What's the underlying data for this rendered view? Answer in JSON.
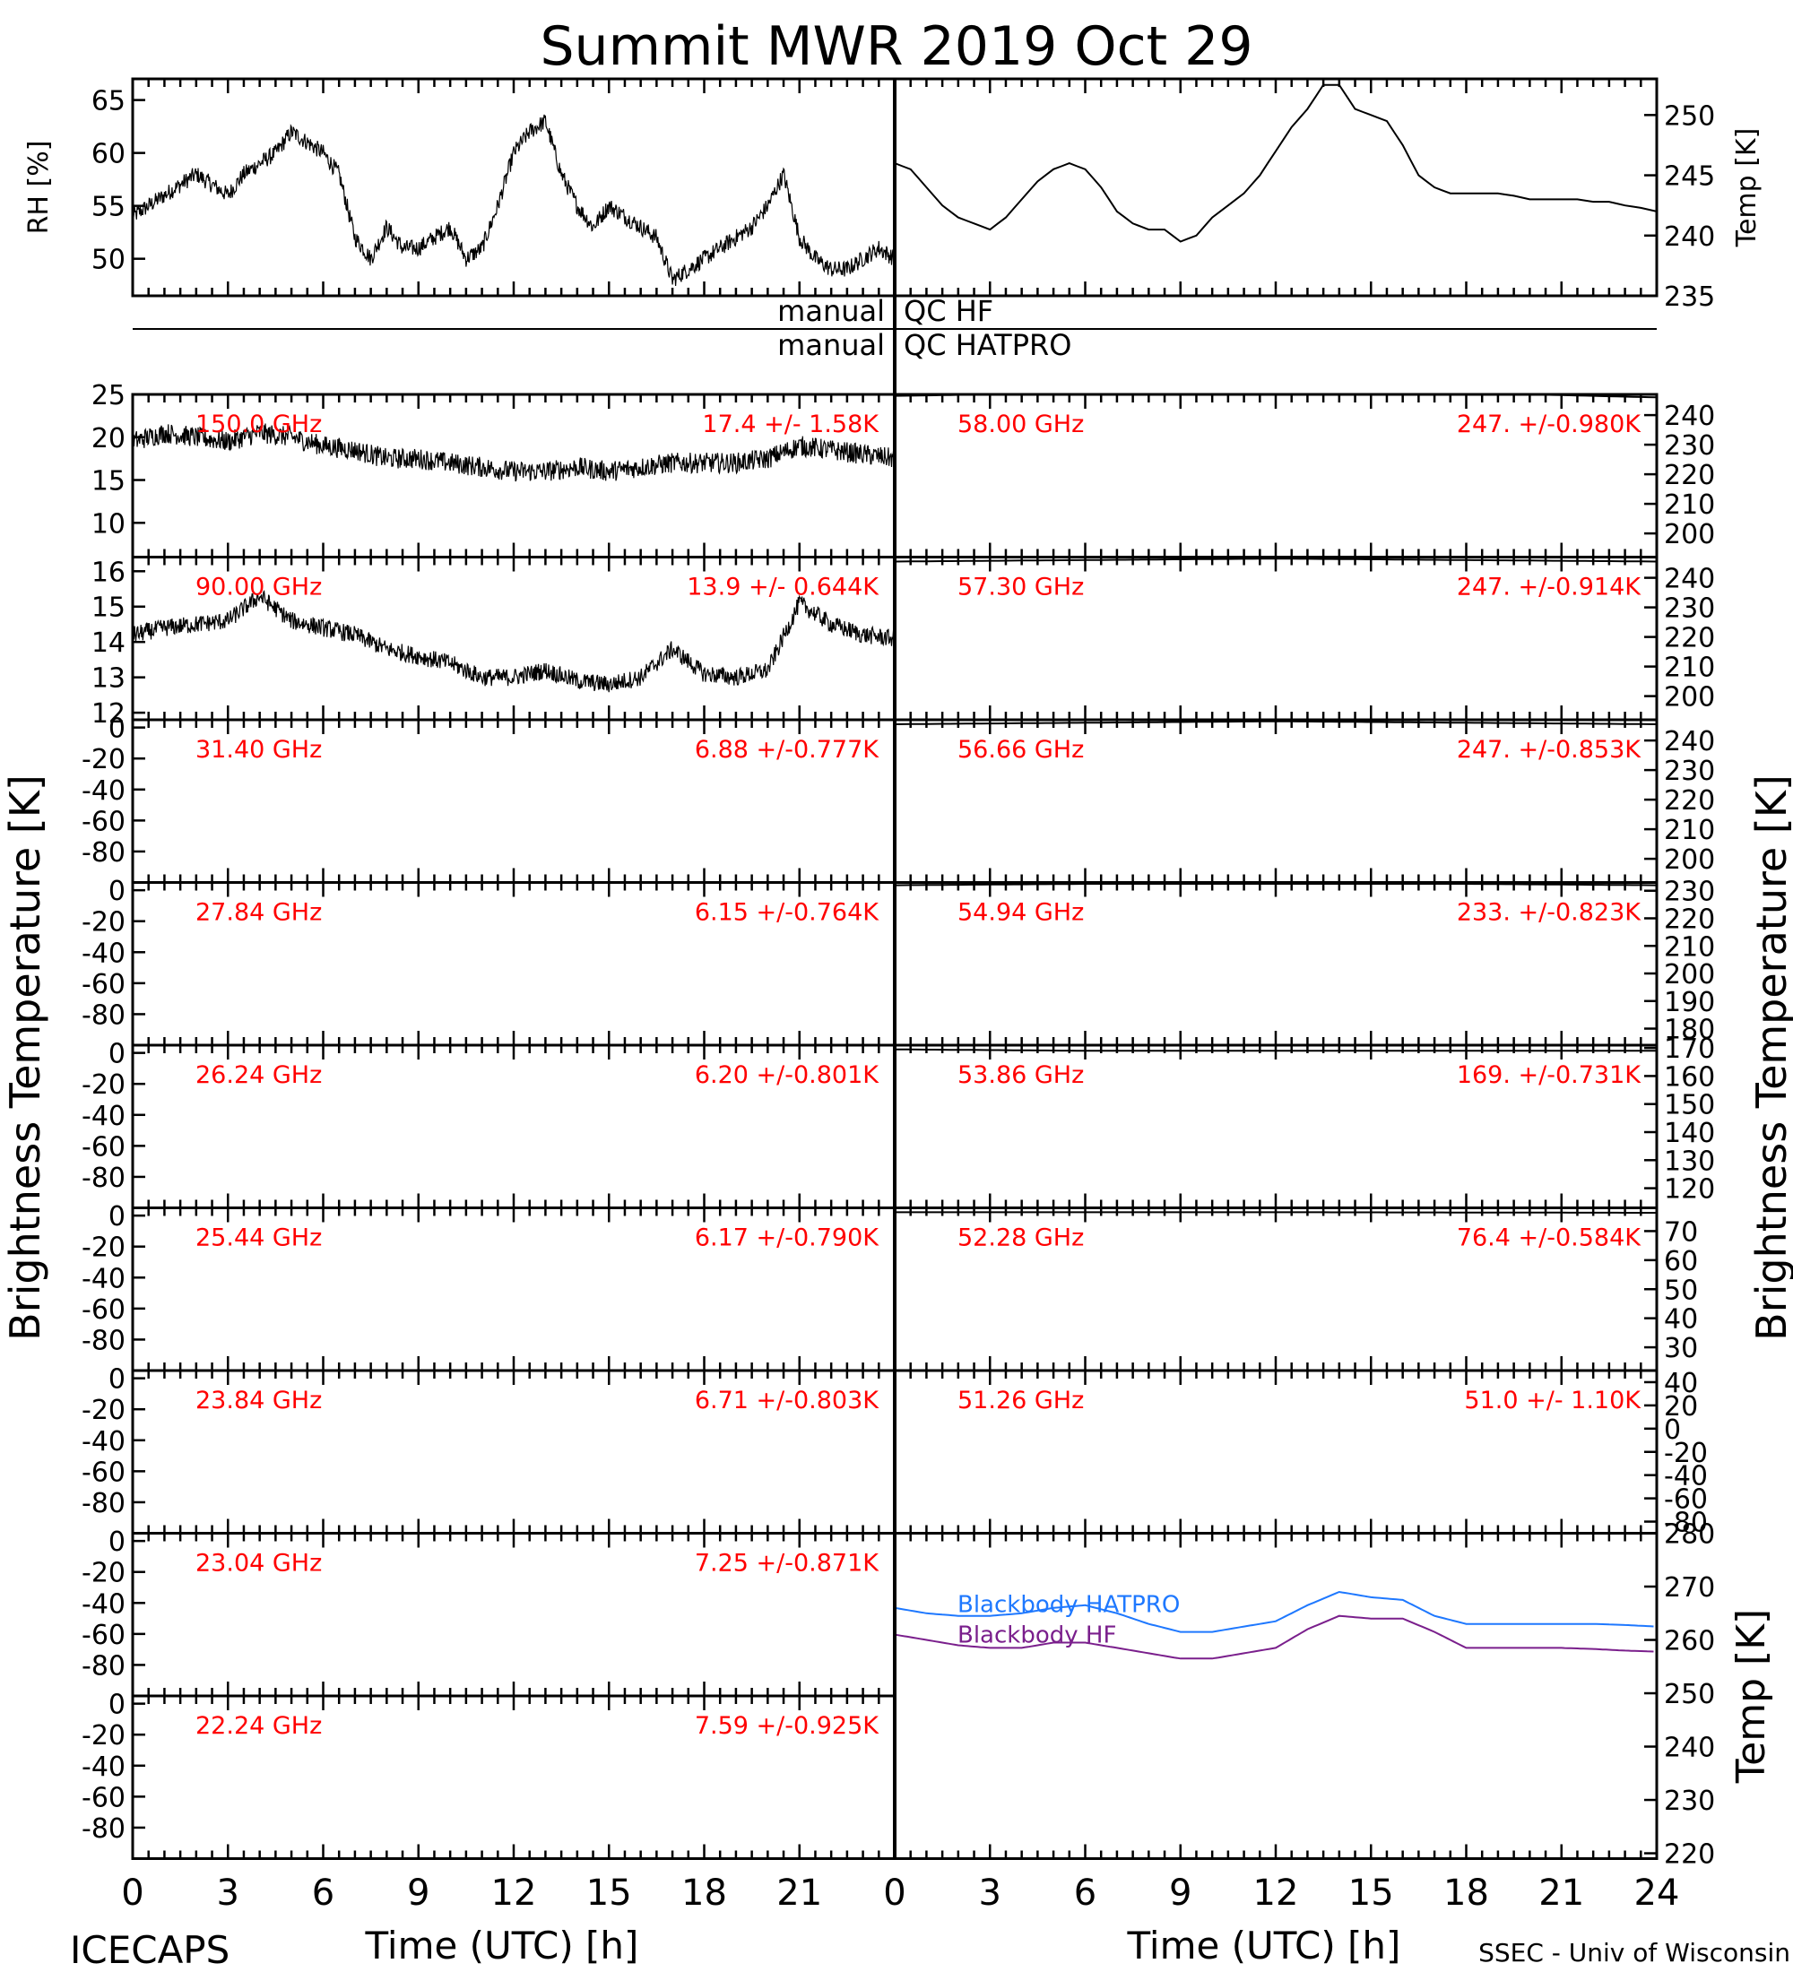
{
  "page": {
    "title": "Summit MWR 2019 Oct 29",
    "footer_left": "ICECAPS",
    "footer_right": "SSEC - Univ of Wisconsin",
    "qc_rows": [
      {
        "left": "manual",
        "right": "QC HF"
      },
      {
        "left": "manual",
        "right": "QC HATPRO"
      }
    ],
    "colors": {
      "axes": "#000000",
      "annotation": "#ff0000",
      "hatpro": "#1e78ff",
      "hf": "#7a1f8c"
    }
  },
  "chart_data": [
    {
      "type": "scatter",
      "ylabel": "RH [%]",
      "xlim": [
        0,
        24
      ],
      "ylim": [
        46.5,
        67
      ],
      "yticks": [
        "50",
        "55",
        "60",
        "65"
      ],
      "x": [
        0,
        0.5,
        1,
        1.5,
        2,
        2.5,
        3,
        3.5,
        4,
        4.5,
        5,
        5.5,
        6,
        6.5,
        7,
        7.5,
        8,
        8.5,
        9,
        9.5,
        10,
        10.5,
        11,
        11.5,
        12,
        12.5,
        13,
        13.5,
        14,
        14.5,
        15,
        15.5,
        16,
        16.5,
        17,
        17.5,
        18,
        18.5,
        19,
        19.5,
        20,
        20.5,
        21,
        21.5,
        22,
        22.5,
        23,
        23.5,
        24
      ],
      "y": [
        54,
        55,
        56,
        57,
        58,
        57,
        56,
        58,
        59,
        60,
        62,
        61,
        60,
        58,
        52,
        50,
        53,
        51,
        51,
        52,
        53,
        50,
        51,
        55,
        60,
        62,
        63,
        58,
        55,
        53,
        55,
        54,
        53,
        52,
        48,
        49,
        50,
        51,
        52,
        53,
        55,
        58,
        52,
        50,
        49,
        49,
        50,
        51,
        50
      ]
    },
    {
      "type": "line",
      "ylabel": "Temp [K]",
      "xlim": [
        0,
        24
      ],
      "ylim": [
        235,
        253
      ],
      "yticks": [
        "235",
        "240",
        "245",
        "250"
      ],
      "x": [
        0,
        0.5,
        1,
        1.5,
        2,
        2.5,
        3,
        3.5,
        4,
        4.5,
        5,
        5.5,
        6,
        6.5,
        7,
        7.5,
        8,
        8.5,
        9,
        9.5,
        10,
        10.5,
        11,
        11.5,
        12,
        12.5,
        13,
        13.5,
        14,
        14.5,
        15,
        15.5,
        16,
        16.5,
        17,
        17.5,
        18,
        18.5,
        19,
        19.5,
        20,
        20.5,
        21,
        21.5,
        22,
        22.5,
        23,
        23.5,
        24
      ],
      "y": [
        246,
        245.5,
        244,
        242.5,
        241.5,
        241,
        240.5,
        241.5,
        243,
        244.5,
        245.5,
        246,
        245.5,
        244,
        242,
        241,
        240.5,
        240.5,
        239.5,
        240,
        241.5,
        242.5,
        243.5,
        245,
        247,
        249,
        250.5,
        252.5,
        252.5,
        250.5,
        250,
        249.5,
        247.5,
        245,
        244,
        243.5,
        243.5,
        243.5,
        243.5,
        243.3,
        243,
        243,
        243,
        243,
        242.8,
        242.8,
        242.5,
        242.3,
        242
      ]
    },
    {
      "type": "scatter",
      "label": "150.0 GHz",
      "stat": "17.4 +/- 1.58K",
      "xlim": [
        0,
        24
      ],
      "ylim": [
        6,
        25
      ],
      "yticks": [
        "10",
        "15",
        "20",
        "25"
      ],
      "x": [
        0,
        1,
        2,
        3,
        4,
        5,
        6,
        7,
        8,
        9,
        10,
        11,
        12,
        13,
        14,
        15,
        16,
        17,
        18,
        19,
        20,
        21,
        22,
        23,
        24
      ],
      "y": [
        19.5,
        20.5,
        20,
        19.5,
        20.5,
        20,
        19,
        18.5,
        17.5,
        17.5,
        17,
        16.5,
        16,
        16,
        16.5,
        16,
        16.5,
        17,
        17,
        17,
        17.5,
        19,
        18.5,
        18,
        17.5
      ]
    },
    {
      "type": "scatter",
      "label": "90.00 GHz",
      "stat": "13.9 +/- 0.644K",
      "xlim": [
        0,
        24
      ],
      "ylim": [
        11.8,
        16.4
      ],
      "yticks": [
        "12",
        "13",
        "14",
        "15",
        "16"
      ],
      "x": [
        0,
        1,
        2,
        3,
        4,
        5,
        6,
        7,
        8,
        9,
        10,
        11,
        12,
        13,
        14,
        15,
        16,
        17,
        18,
        19,
        20,
        21,
        22,
        23,
        24
      ],
      "y": [
        14.2,
        14.4,
        14.5,
        14.6,
        15.3,
        14.6,
        14.4,
        14.2,
        13.8,
        13.6,
        13.4,
        13,
        13,
        13.2,
        12.9,
        12.8,
        13,
        13.8,
        13.1,
        13,
        13.2,
        15.1,
        14.5,
        14.2,
        14.1
      ]
    },
    {
      "type": "line",
      "label": "31.40 GHz",
      "stat": "6.88 +/-0.777K",
      "xlim": [
        0,
        24
      ],
      "ylim": [
        -100,
        5
      ],
      "yticks": [
        "0",
        "-20",
        "-40",
        "-60",
        "-80"
      ],
      "x": [
        0,
        24
      ],
      "y": [
        6.9,
        6.9
      ]
    },
    {
      "type": "line",
      "label": "27.84 GHz",
      "stat": "6.15 +/-0.764K",
      "xlim": [
        0,
        24
      ],
      "ylim": [
        -100,
        5
      ],
      "yticks": [
        "0",
        "-20",
        "-40",
        "-60",
        "-80"
      ],
      "x": [
        0,
        24
      ],
      "y": [
        6.2,
        6.2
      ]
    },
    {
      "type": "line",
      "label": "26.24 GHz",
      "stat": "6.20 +/-0.801K",
      "xlim": [
        0,
        24
      ],
      "ylim": [
        -100,
        5
      ],
      "yticks": [
        "0",
        "-20",
        "-40",
        "-60",
        "-80"
      ],
      "x": [
        0,
        24
      ],
      "y": [
        6.2,
        6.2
      ]
    },
    {
      "type": "line",
      "label": "25.44 GHz",
      "stat": "6.17 +/-0.790K",
      "xlim": [
        0,
        24
      ],
      "ylim": [
        -100,
        5
      ],
      "yticks": [
        "0",
        "-20",
        "-40",
        "-60",
        "-80"
      ],
      "x": [
        0,
        24
      ],
      "y": [
        6.2,
        6.2
      ]
    },
    {
      "type": "line",
      "label": "23.84 GHz",
      "stat": "6.71 +/-0.803K",
      "xlim": [
        0,
        24
      ],
      "ylim": [
        -100,
        5
      ],
      "yticks": [
        "0",
        "-20",
        "-40",
        "-60",
        "-80"
      ],
      "x": [
        0,
        24
      ],
      "y": [
        6.7,
        6.7
      ]
    },
    {
      "type": "line",
      "label": "23.04 GHz",
      "stat": "7.25 +/-0.871K",
      "xlim": [
        0,
        24
      ],
      "ylim": [
        -100,
        5
      ],
      "yticks": [
        "0",
        "-20",
        "-40",
        "-60",
        "-80"
      ],
      "x": [
        0,
        24
      ],
      "y": [
        7.3,
        7.3
      ]
    },
    {
      "type": "line",
      "label": "22.24 GHz",
      "stat": "7.59 +/-0.925K",
      "xlim": [
        0,
        24
      ],
      "ylim": [
        -100,
        5
      ],
      "yticks": [
        "0",
        "-20",
        "-40",
        "-60",
        "-80"
      ],
      "x": [
        0,
        24
      ],
      "y": [
        7.6,
        7.6
      ]
    },
    {
      "type": "line",
      "label": "58.00 GHz",
      "stat": "247. +/-0.980K",
      "xlim": [
        0,
        24
      ],
      "ylim": [
        192,
        247
      ],
      "yticks": [
        "240",
        "230",
        "220",
        "210",
        "200"
      ],
      "x": [
        0,
        6,
        12,
        18,
        24
      ],
      "y": [
        246.5,
        247.5,
        247.5,
        247.5,
        246
      ]
    },
    {
      "type": "line",
      "label": "57.30 GHz",
      "stat": "247. +/-0.914K",
      "xlim": [
        0,
        24
      ],
      "ylim": [
        192,
        247
      ],
      "yticks": [
        "240",
        "230",
        "220",
        "210",
        "200"
      ],
      "x": [
        0,
        6,
        12,
        18,
        24
      ],
      "y": [
        245.5,
        246,
        246.5,
        246,
        245.5
      ]
    },
    {
      "type": "line",
      "label": "56.66 GHz",
      "stat": "247. +/-0.853K",
      "xlim": [
        0,
        24
      ],
      "ylim": [
        192,
        247
      ],
      "yticks": [
        "240",
        "230",
        "220",
        "210",
        "200"
      ],
      "x": [
        0,
        6,
        12,
        18,
        24
      ],
      "y": [
        245.5,
        246,
        246.5,
        246,
        245.5
      ]
    },
    {
      "type": "line",
      "label": "54.94 GHz",
      "stat": "233. +/-0.823K",
      "xlim": [
        0,
        24
      ],
      "ylim": [
        174,
        233
      ],
      "yticks": [
        "230",
        "220",
        "210",
        "200",
        "190",
        "180"
      ],
      "x": [
        0,
        6,
        12,
        18,
        24
      ],
      "y": [
        232,
        232.5,
        232.5,
        232.5,
        232
      ]
    },
    {
      "type": "line",
      "label": "53.86 GHz",
      "stat": "169. +/-0.731K",
      "xlim": [
        0,
        24
      ],
      "ylim": [
        113,
        171
      ],
      "yticks": [
        "170",
        "160",
        "150",
        "140",
        "130",
        "120"
      ],
      "x": [
        0,
        6,
        12,
        18,
        24
      ],
      "y": [
        169.5,
        169,
        169,
        169,
        169
      ]
    },
    {
      "type": "line",
      "label": "52.28 GHz",
      "stat": "76.4 +/-0.584K",
      "xlim": [
        0,
        24
      ],
      "ylim": [
        22,
        78
      ],
      "yticks": [
        "70",
        "60",
        "50",
        "40",
        "30"
      ],
      "x": [
        0,
        6,
        12,
        18,
        24
      ],
      "y": [
        76.5,
        76.5,
        76.5,
        76.4,
        76.3
      ]
    },
    {
      "type": "line",
      "label": "51.26 GHz",
      "stat": "51.0 +/- 1.10K",
      "xlim": [
        0,
        24
      ],
      "ylim": [
        -90,
        50
      ],
      "yticks": [
        "40",
        "20",
        "0",
        "-20",
        "-40",
        "-60",
        "-80"
      ],
      "x": [
        0,
        24
      ],
      "y": [
        51,
        51
      ]
    },
    {
      "type": "line",
      "ylabel": "Temp [K]",
      "xlabel": "Time (UTC) [h]",
      "xlim": [
        0,
        24
      ],
      "ylim": [
        219,
        280
      ],
      "yticks": [
        "280",
        "270",
        "260",
        "250",
        "240",
        "230",
        "220"
      ],
      "xticks": [
        "0",
        "3",
        "6",
        "9",
        "12",
        "15",
        "18",
        "21",
        "24"
      ],
      "x": [
        0,
        1,
        2,
        3,
        4,
        5,
        6,
        7,
        8,
        9,
        10,
        11,
        12,
        13,
        14,
        15,
        16,
        17,
        18,
        19,
        20,
        21,
        22,
        23,
        24
      ],
      "series": [
        {
          "name": "Blackbody HATPRO",
          "y": [
            266,
            265,
            264.5,
            264.5,
            265,
            266,
            266.5,
            265,
            263,
            261.5,
            261.5,
            262.5,
            263.5,
            266.5,
            269,
            268,
            267.5,
            264.5,
            263,
            263,
            263,
            263,
            263,
            262.8,
            262.5
          ]
        },
        {
          "name": "Blackbody HF",
          "y": [
            261,
            260,
            259,
            258.5,
            258.5,
            259.5,
            259.5,
            258.5,
            257.5,
            256.5,
            256.5,
            257.5,
            258.5,
            262,
            264.5,
            264,
            264,
            261.5,
            258.5,
            258.5,
            258.5,
            258.5,
            258.3,
            258,
            257.8
          ]
        }
      ]
    }
  ]
}
